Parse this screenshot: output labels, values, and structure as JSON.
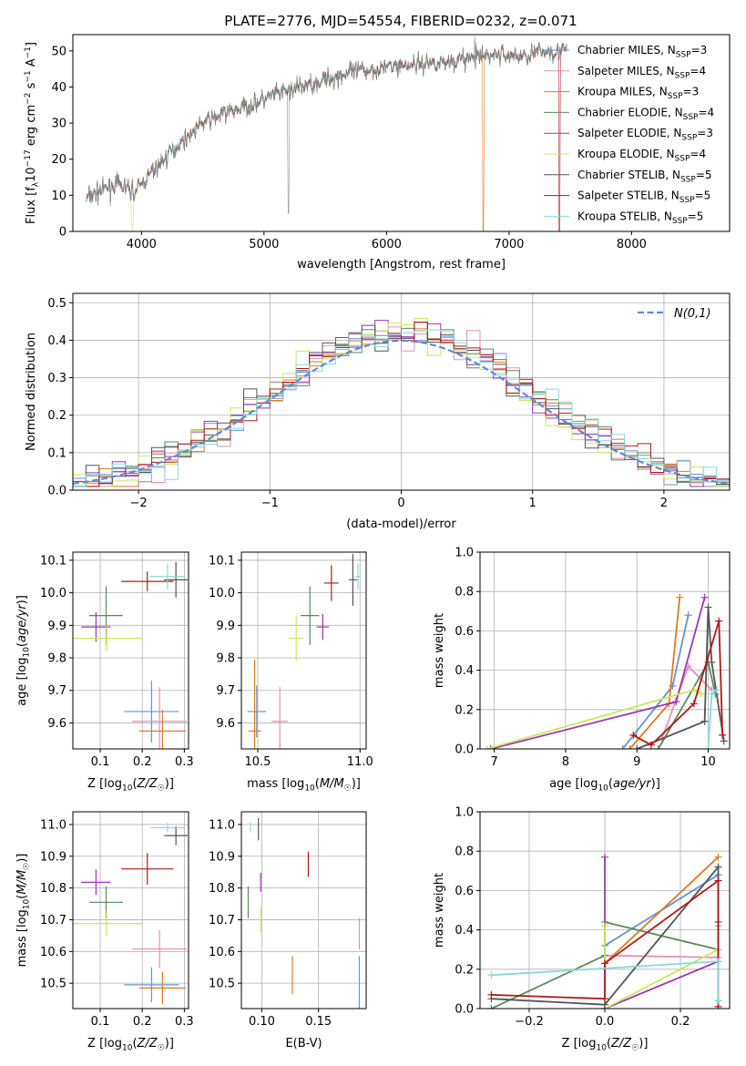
{
  "figure_title": "PLATE=2776, MJD=54554, FIBERID=0232, z=0.071",
  "chart_data": [
    {
      "id": "spectrum",
      "type": "line",
      "xlabel": "wavelength [Angstrom, rest frame]",
      "ylabel": "Flux [f_λ10^-17 erg cm^-2 s^-1 A^-1]",
      "xlim": [
        3440,
        8800
      ],
      "ylim": [
        0,
        54.5
      ],
      "xticks": [
        4000,
        5000,
        6000,
        7000,
        8000
      ],
      "yticks": [
        0,
        10,
        20,
        30,
        40,
        50
      ],
      "grid": false,
      "legend_position": "right",
      "series": [
        {
          "name": "Chabrier MILES, N_SSP=3",
          "color": "#6a8fd8"
        },
        {
          "name": "Salpeter MILES, N_SSP=4",
          "color": "#e88fb8"
        },
        {
          "name": "Kroupa MILES, N_SSP=3",
          "color": "#e07a1f"
        },
        {
          "name": "Chabrier ELODIE, N_SSP=4",
          "color": "#5a8a60"
        },
        {
          "name": "Salpeter ELODIE, N_SSP=3",
          "color": "#9a35b5"
        },
        {
          "name": "Kroupa ELODIE, N_SSP=4",
          "color": "#c8e85a"
        },
        {
          "name": "Chabrier STELIB, N_SSP=5",
          "color": "#555555"
        },
        {
          "name": "Salpeter STELIB, N_SSP=5",
          "color": "#b01818"
        },
        {
          "name": "Kroupa STELIB, N_SSP=5",
          "color": "#88d8dc"
        }
      ],
      "data_envelope": {
        "x": [
          3550,
          3650,
          3800,
          3950,
          4100,
          4300,
          4500,
          4700,
          4900,
          5100,
          5300,
          5500,
          5700,
          5900,
          6100,
          6300,
          6500,
          6700,
          6900,
          7100,
          7300,
          7450
        ],
        "y": [
          9,
          11,
          13,
          11,
          17,
          24,
          30,
          33,
          35,
          38,
          40,
          42,
          44,
          45,
          46,
          46.5,
          47,
          48,
          49,
          48.5,
          50,
          50
        ]
      }
    },
    {
      "id": "residuals",
      "type": "line",
      "xlabel": "(data-model)/error",
      "ylabel": "Normed distribution",
      "xlim": [
        -2.5,
        2.5
      ],
      "ylim": [
        0,
        0.525
      ],
      "xticks": [
        -2,
        -1,
        0,
        1,
        2
      ],
      "yticks": [
        0.0,
        0.1,
        0.2,
        0.3,
        0.4,
        0.5
      ],
      "grid": true,
      "legend_position": "top-right",
      "reference": {
        "name": "N(0,1)",
        "color": "#5b8bd8",
        "style": "dashed"
      },
      "bin_width": 0.1
    },
    {
      "id": "age_vs_Z",
      "type": "scatter",
      "xlabel": "Z [log10(Z/Z☉)]",
      "ylabel": "age [log10(age/yr)]",
      "xlim": [
        0.035,
        0.31
      ],
      "ylim": [
        9.52,
        10.125
      ],
      "xticks": [
        0.1,
        0.2,
        0.3
      ],
      "yticks": [
        9.6,
        9.7,
        9.8,
        9.9,
        10.0,
        10.1
      ],
      "grid": true,
      "points": [
        {
          "color": "#6a8fd8",
          "x": 0.222,
          "xerr": 0.065,
          "y": 9.635,
          "yerr": 0.095
        },
        {
          "color": "#e88fb8",
          "x": 0.241,
          "xerr": 0.065,
          "y": 9.605,
          "yerr": 0.105
        },
        {
          "color": "#e07a1f",
          "x": 0.248,
          "xerr": 0.055,
          "y": 9.575,
          "yerr": 0.065
        },
        {
          "color": "#5a8a60",
          "x": 0.114,
          "xerr": 0.04,
          "y": 9.93,
          "yerr": 0.09
        },
        {
          "color": "#9a35b5",
          "x": 0.09,
          "xerr": 0.035,
          "y": 9.895,
          "yerr": 0.045
        },
        {
          "color": "#c8e85a",
          "x": 0.115,
          "xerr": 0.085,
          "y": 9.86,
          "yerr": 0.04
        },
        {
          "color": "#555555",
          "x": 0.28,
          "xerr": 0.028,
          "y": 10.04,
          "yerr": 0.055
        },
        {
          "color": "#b01818",
          "x": 0.212,
          "xerr": 0.062,
          "y": 10.035,
          "yerr": 0.03
        },
        {
          "color": "#88d8dc",
          "x": 0.26,
          "xerr": 0.042,
          "y": 10.05,
          "yerr": 0.04
        }
      ]
    },
    {
      "id": "age_vs_mass",
      "type": "scatter",
      "xlabel": "mass [log10(M/M☉)]",
      "ylabel": "",
      "xlim": [
        10.42,
        11.03
      ],
      "ylim": [
        9.52,
        10.125
      ],
      "xticks": [
        10.5,
        11.0
      ],
      "yticks": [
        9.6,
        9.7,
        9.8,
        9.9,
        10.0,
        10.1
      ],
      "grid": true,
      "points": [
        {
          "color": "#6a8fd8",
          "x": 10.495,
          "xerr": 0.045,
          "y": 9.635,
          "yerr": 0.08
        },
        {
          "color": "#e88fb8",
          "x": 10.608,
          "xerr": 0.04,
          "y": 9.605,
          "yerr": 0.105
        },
        {
          "color": "#e07a1f",
          "x": 10.485,
          "xerr": 0.03,
          "y": 9.575,
          "yerr": 0.22
        },
        {
          "color": "#5a8a60",
          "x": 10.755,
          "xerr": 0.045,
          "y": 9.93,
          "yerr": 0.09
        },
        {
          "color": "#9a35b5",
          "x": 10.818,
          "xerr": 0.03,
          "y": 9.895,
          "yerr": 0.04
        },
        {
          "color": "#c8e85a",
          "x": 10.688,
          "xerr": 0.035,
          "y": 9.86,
          "yerr": 0.07
        },
        {
          "color": "#555555",
          "x": 10.965,
          "xerr": 0.02,
          "y": 10.04,
          "yerr": 0.08
        },
        {
          "color": "#b01818",
          "x": 10.86,
          "xerr": 0.035,
          "y": 10.03,
          "yerr": 0.055
        },
        {
          "color": "#88d8dc",
          "x": 10.99,
          "xerr": 0.012,
          "y": 10.05,
          "yerr": 0.04
        }
      ]
    },
    {
      "id": "weight_vs_age",
      "type": "line",
      "xlabel": "age [log10(age/yr)]",
      "ylabel": "mass weight",
      "xlim": [
        6.8,
        10.3
      ],
      "ylim": [
        0,
        1.0
      ],
      "xticks": [
        7,
        8,
        9,
        10
      ],
      "yticks": [
        0.0,
        0.2,
        0.4,
        0.6,
        0.8,
        1.0
      ],
      "grid": true,
      "series": [
        {
          "color": "#6a8fd8",
          "x": [
            8.8,
            9.5,
            9.72
          ],
          "y": [
            0.0,
            0.32,
            0.68
          ]
        },
        {
          "color": "#e88fb8",
          "x": [
            9.35,
            9.72,
            10.05
          ],
          "y": [
            0.05,
            0.42,
            0.3
          ]
        },
        {
          "color": "#e07a1f",
          "x": [
            8.9,
            9.45,
            9.6
          ],
          "y": [
            0.0,
            0.23,
            0.77
          ]
        },
        {
          "color": "#5a8a60",
          "x": [
            9.3,
            10.0,
            10.1
          ],
          "y": [
            0.0,
            0.44,
            0.28
          ]
        },
        {
          "color": "#9a35b5",
          "x": [
            6.95,
            9.55,
            9.95
          ],
          "y": [
            0.0,
            0.24,
            0.77
          ]
        },
        {
          "color": "#c8e85a",
          "x": [
            6.9,
            9.8,
            9.9
          ],
          "y": [
            0.0,
            0.3,
            0.28
          ]
        },
        {
          "color": "#555555",
          "x": [
            9.0,
            9.95,
            10.0,
            10.05,
            10.22
          ],
          "y": [
            0.0,
            0.14,
            0.72,
            0.44,
            0.04
          ]
        },
        {
          "color": "#b01818",
          "x": [
            8.95,
            9.2,
            9.8,
            10.15,
            10.2
          ],
          "y": [
            0.07,
            0.02,
            0.23,
            0.65,
            0.07
          ]
        },
        {
          "color": "#88d8dc",
          "x": [
            10.0,
            10.05,
            10.12
          ],
          "y": [
            0.0,
            0.28,
            0.3
          ]
        }
      ]
    },
    {
      "id": "mass_vs_Z",
      "type": "scatter",
      "xlabel": "Z [log10(Z/Z☉)]",
      "ylabel": "mass [log10(M/M☉)]",
      "xlim": [
        0.035,
        0.31
      ],
      "ylim": [
        10.42,
        11.04
      ],
      "xticks": [
        0.1,
        0.2,
        0.3
      ],
      "yticks": [
        10.5,
        10.6,
        10.7,
        10.8,
        10.9,
        11.0
      ],
      "grid": true,
      "points": [
        {
          "color": "#6a8fd8",
          "x": 0.222,
          "xerr": 0.065,
          "y": 10.495,
          "yerr": 0.055
        },
        {
          "color": "#e88fb8",
          "x": 0.241,
          "xerr": 0.065,
          "y": 10.608,
          "yerr": 0.06
        },
        {
          "color": "#e07a1f",
          "x": 0.248,
          "xerr": 0.055,
          "y": 10.485,
          "yerr": 0.05
        },
        {
          "color": "#5a8a60",
          "x": 0.114,
          "xerr": 0.04,
          "y": 10.755,
          "yerr": 0.05
        },
        {
          "color": "#9a35b5",
          "x": 0.09,
          "xerr": 0.035,
          "y": 10.818,
          "yerr": 0.04
        },
        {
          "color": "#c8e85a",
          "x": 0.115,
          "xerr": 0.085,
          "y": 10.688,
          "yerr": 0.04
        },
        {
          "color": "#555555",
          "x": 0.28,
          "xerr": 0.028,
          "y": 10.965,
          "yerr": 0.03
        },
        {
          "color": "#b01818",
          "x": 0.212,
          "xerr": 0.062,
          "y": 10.86,
          "yerr": 0.05
        },
        {
          "color": "#88d8dc",
          "x": 0.26,
          "xerr": 0.042,
          "y": 10.99,
          "yerr": 0.015
        }
      ]
    },
    {
      "id": "mass_vs_ebv",
      "type": "scatter",
      "xlabel": "E(B-V)",
      "ylabel": "",
      "xlim": [
        0.082,
        0.192
      ],
      "ylim": [
        10.42,
        11.04
      ],
      "xticks": [
        0.1,
        0.15
      ],
      "xticklabels": [
        "0.10",
        "0.15"
      ],
      "yticks": [
        10.5,
        10.6,
        10.7,
        10.8,
        10.9,
        11.0
      ],
      "grid": true,
      "points": [
        {
          "color": "#6a8fd8",
          "x": 0.186,
          "y": 10.495,
          "yerr": 0.09
        },
        {
          "color": "#e88fb8",
          "x": 0.186,
          "y": 10.655,
          "yerr": 0.05
        },
        {
          "color": "#e07a1f",
          "x": 0.127,
          "y": 10.525,
          "yerr": 0.06
        },
        {
          "color": "#5a8a60",
          "x": 0.088,
          "y": 10.755,
          "yerr": 0.05
        },
        {
          "color": "#9a35b5",
          "x": 0.099,
          "y": 10.818,
          "yerr": 0.03
        },
        {
          "color": "#c8e85a",
          "x": 0.099,
          "y": 10.7,
          "yerr": 0.04
        },
        {
          "color": "#555555",
          "x": 0.097,
          "y": 10.985,
          "yerr": 0.035
        },
        {
          "color": "#b01818",
          "x": 0.141,
          "y": 10.875,
          "yerr": 0.04
        },
        {
          "color": "#88d8dc",
          "x": 0.09,
          "y": 10.99,
          "yerr": 0.015
        }
      ]
    },
    {
      "id": "weight_vs_Z",
      "type": "line",
      "xlabel": "Z [log10(Z/Z☉)]",
      "ylabel": "mass weight",
      "xlim": [
        -0.33,
        0.33
      ],
      "ylim": [
        0,
        1.0
      ],
      "xticks": [
        -0.2,
        0.0,
        0.2
      ],
      "xticklabels": [
        "−0.2",
        "0.0",
        "0.2"
      ],
      "yticks": [
        0.0,
        0.2,
        0.4,
        0.6,
        0.8,
        1.0
      ],
      "grid": true,
      "series": [
        {
          "color": "#6a8fd8",
          "x": [
            0.0,
            0.0,
            0.3
          ],
          "y": [
            0.0,
            0.32,
            0.68
          ]
        },
        {
          "color": "#e88fb8",
          "x": [
            0.0,
            0.3,
            0.3
          ],
          "y": [
            0.27,
            0.26,
            0.42
          ]
        },
        {
          "color": "#e07a1f",
          "x": [
            0.0,
            0.0,
            0.3
          ],
          "y": [
            0.0,
            0.23,
            0.77
          ]
        },
        {
          "color": "#5a8a60",
          "x": [
            -0.3,
            0.0,
            0.0,
            0.3
          ],
          "y": [
            0.0,
            0.27,
            0.44,
            0.3
          ]
        },
        {
          "color": "#9a35b5",
          "x": [
            0.0,
            0.0,
            0.3
          ],
          "y": [
            0.77,
            0.0,
            0.24
          ]
        },
        {
          "color": "#c8e85a",
          "x": [
            0.0,
            0.0,
            0.3
          ],
          "y": [
            0.42,
            0.0,
            0.3
          ]
        },
        {
          "color": "#555555",
          "x": [
            -0.3,
            0.0,
            0.3,
            0.3,
            0.3
          ],
          "y": [
            0.05,
            0.02,
            0.72,
            0.44,
            0.04
          ]
        },
        {
          "color": "#b01818",
          "x": [
            -0.3,
            0.0,
            0.0,
            0.3,
            0.3
          ],
          "y": [
            0.07,
            0.05,
            0.23,
            0.65,
            0.01
          ]
        },
        {
          "color": "#88d8dc",
          "x": [
            -0.3,
            0.3,
            0.3
          ],
          "y": [
            0.17,
            0.24,
            0.04
          ]
        }
      ]
    }
  ]
}
